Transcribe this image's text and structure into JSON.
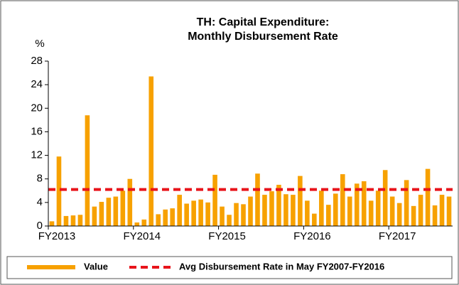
{
  "chart_data": {
    "type": "bar",
    "title": [
      "TH: Capital Expenditure:",
      "Monthly Disbursement Rate"
    ],
    "y_label": "%",
    "categories": [
      "FY2013",
      null,
      null,
      null,
      null,
      null,
      null,
      null,
      null,
      null,
      null,
      null,
      "FY2014",
      null,
      null,
      null,
      null,
      null,
      null,
      null,
      null,
      null,
      null,
      null,
      "FY2015",
      null,
      null,
      null,
      null,
      null,
      null,
      null,
      null,
      null,
      null,
      null,
      "FY2016",
      null,
      null,
      null,
      null,
      null,
      null,
      null,
      null,
      null,
      null,
      null,
      "FY2017",
      null,
      null,
      null,
      null,
      null,
      null,
      null,
      null
    ],
    "series": [
      {
        "name": "Value",
        "type": "bar",
        "color": "#f7a100",
        "values": [
          0.8,
          11.8,
          1.7,
          1.8,
          1.9,
          18.8,
          3.3,
          4.1,
          4.8,
          5.0,
          6.0,
          8.0,
          0.6,
          1.1,
          25.4,
          2.0,
          2.8,
          3.0,
          5.3,
          3.8,
          4.3,
          4.5,
          4.0,
          8.7,
          3.3,
          1.9,
          3.9,
          3.7,
          5.0,
          8.9,
          5.3,
          5.9,
          7.0,
          5.4,
          5.3,
          8.5,
          4.3,
          2.1,
          6.0,
          3.6,
          5.5,
          8.8,
          5.0,
          7.2,
          7.6,
          4.3,
          6.0,
          9.5,
          5.0,
          3.9,
          7.8,
          3.4,
          5.3,
          9.7,
          3.5,
          5.3,
          5.0
        ]
      },
      {
        "name": "Avg Disbursement Rate in May FY2007-FY2016",
        "type": "line",
        "color": "#e8141b",
        "value": 6.2
      }
    ],
    "ylim": [
      0,
      28
    ],
    "yticks": [
      0,
      4,
      8,
      12,
      16,
      20,
      24,
      28
    ],
    "grid": false,
    "legend": "bottom"
  }
}
